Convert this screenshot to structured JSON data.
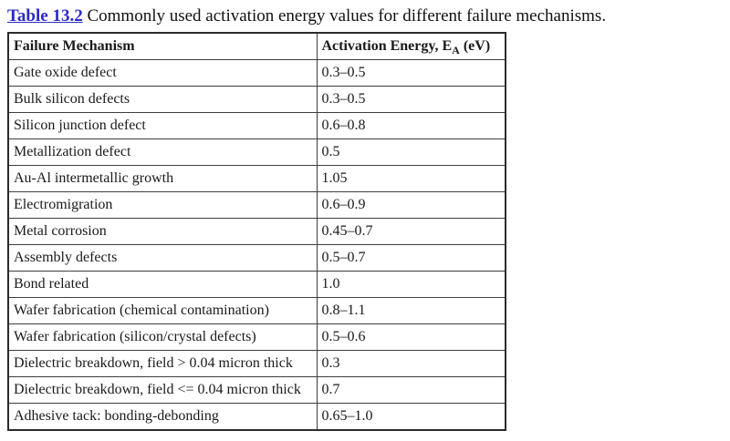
{
  "page": {
    "caption_link": "Table 13.2",
    "caption_text": " Commonly used activation energy values for different failure mechanisms.",
    "accent_blue": "#2b2bcc",
    "border_color": "#2b2b2b",
    "background": "#ffffff"
  },
  "table": {
    "columns": {
      "mechanism": "Failure Mechanism",
      "energy_prefix": "Activation Energy, E",
      "energy_sub": "A",
      "energy_suffix": " (eV)"
    },
    "rows": [
      {
        "mechanism": "Gate oxide defect",
        "energy": "0.3–0.5"
      },
      {
        "mechanism": "Bulk silicon defects",
        "energy": "0.3–0.5"
      },
      {
        "mechanism": "Silicon junction defect",
        "energy": "0.6–0.8"
      },
      {
        "mechanism": "Metallization defect",
        "energy": "0.5"
      },
      {
        "mechanism": "Au-Al intermetallic growth",
        "energy": "1.05"
      },
      {
        "mechanism": "Electromigration",
        "energy": "0.6–0.9"
      },
      {
        "mechanism": "Metal corrosion",
        "energy": "0.45–0.7"
      },
      {
        "mechanism": "Assembly defects",
        "energy": "0.5–0.7"
      },
      {
        "mechanism": "Bond related",
        "energy": "1.0"
      },
      {
        "mechanism": "Wafer fabrication (chemical contamination)",
        "energy": "0.8–1.1"
      },
      {
        "mechanism": "Wafer fabrication (silicon/crystal defects)",
        "energy": "0.5–0.6"
      },
      {
        "mechanism": "Dielectric breakdown, field > 0.04 micron thick",
        "energy": "0.3"
      },
      {
        "mechanism": "Dielectric breakdown, field <= 0.04 micron thick",
        "energy": "0.7"
      },
      {
        "mechanism": "Adhesive tack: bonding-debonding",
        "energy": "0.65–1.0"
      }
    ]
  }
}
